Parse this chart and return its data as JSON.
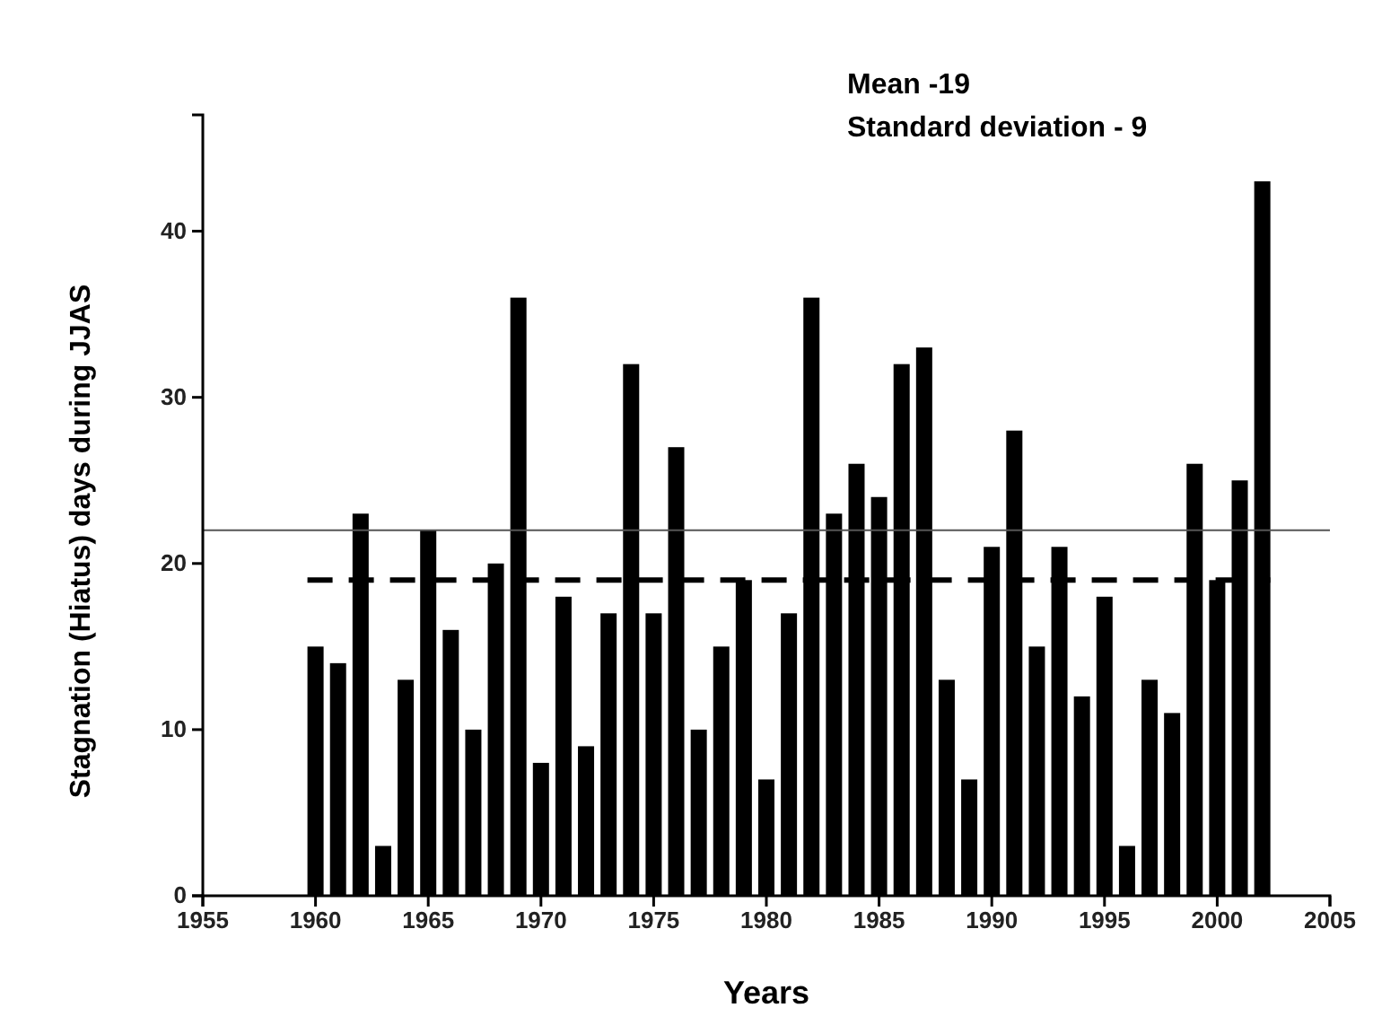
{
  "chart_data": {
    "type": "bar",
    "xlabel": "Years",
    "ylabel": "Stagnation (Hiatus) days during JJAS",
    "x": [
      1960,
      1961,
      1962,
      1963,
      1964,
      1965,
      1966,
      1967,
      1968,
      1969,
      1970,
      1971,
      1972,
      1973,
      1974,
      1975,
      1976,
      1977,
      1978,
      1979,
      1980,
      1981,
      1982,
      1983,
      1984,
      1985,
      1986,
      1987,
      1988,
      1989,
      1990,
      1991,
      1992,
      1993,
      1994,
      1995,
      1996,
      1997,
      1998,
      1999,
      2000,
      2001,
      2002
    ],
    "values": [
      15,
      14,
      23,
      3,
      13,
      22,
      16,
      10,
      20,
      36,
      8,
      18,
      9,
      17,
      32,
      17,
      27,
      10,
      15,
      19,
      7,
      17,
      36,
      23,
      26,
      24,
      32,
      33,
      13,
      7,
      21,
      28,
      15,
      21,
      12,
      18,
      3,
      13,
      11,
      26,
      19,
      25,
      43
    ],
    "color": "#000000",
    "xlim": [
      1955,
      2005
    ],
    "xticks": [
      1955,
      1960,
      1965,
      1970,
      1975,
      1980,
      1985,
      1990,
      1995,
      2000,
      2005
    ],
    "ylim": [
      0,
      47
    ],
    "yticks": [
      0,
      10,
      20,
      30,
      40
    ],
    "ref_lines": [
      {
        "axis": "y",
        "value": 19,
        "line_style": "dashed",
        "color": "#000000"
      },
      {
        "axis": "y",
        "value": 22,
        "line_style": "solid",
        "color": "#555555"
      }
    ],
    "annotations": [
      "Mean -19",
      "Standard deviation - 9"
    ]
  }
}
